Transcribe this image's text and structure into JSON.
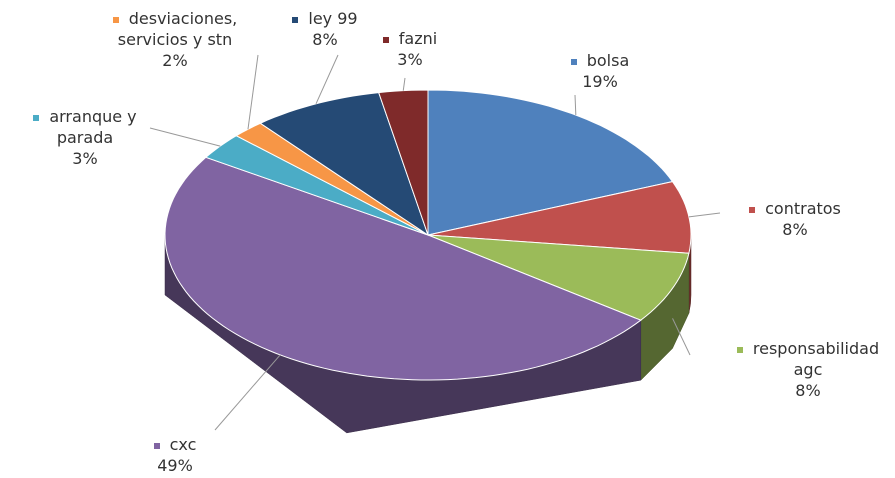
{
  "chart_data": {
    "type": "pie",
    "categories": [
      "bolsa",
      "contratos",
      "responsabilidad agc",
      "cxc",
      "arranque y parada",
      "desviaciones, servicios y stn",
      "ley 99",
      "fazni"
    ],
    "values": [
      19,
      8,
      8,
      49,
      3,
      2,
      8,
      3
    ],
    "value_labels": [
      "19%",
      "8%",
      "8%",
      "49%",
      "3%",
      "2%",
      "8%",
      "3%"
    ],
    "colors": [
      "#4f81bd",
      "#c0504d",
      "#9bbb59",
      "#8064a2",
      "#4bacc6",
      "#f79646",
      "#254a75",
      "#7f2a2a"
    ]
  }
}
